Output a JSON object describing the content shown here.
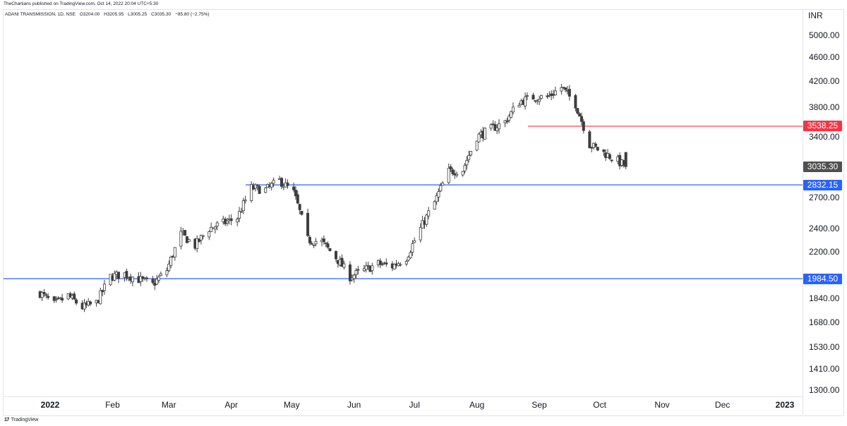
{
  "publisher_text": "TheChartians published on TradingView.com, Oct 14, 2022 20:04 UTC+5:30",
  "symbol": {
    "name": "ADANI TRANSMISSION, 1D, NSE",
    "open": "O3204.00",
    "high": "H3205.95",
    "low": "L3005.25",
    "close": "C3035.30",
    "change": "−85.80 (−2.75%)"
  },
  "currency": "INR",
  "footer": {
    "logo_glyph": "17",
    "brand": "TradingView"
  },
  "colors": {
    "up": "#ffffff",
    "down": "#3d3d3d",
    "wick": "#3d3d3d",
    "support": "#2962ff",
    "resistance": "#f23645",
    "last": "#505050"
  },
  "chart_data": {
    "type": "candlestick",
    "y_scale": "log",
    "ylim": [
      1270,
      5500
    ],
    "y_ticks": [
      "5000.00",
      "4600.00",
      "4200.00",
      "3800.00",
      "3400.00",
      "2700.00",
      "2400.00",
      "2200.00",
      "1840.00",
      "1680.00",
      "1530.00",
      "1410.00",
      "1300.00"
    ],
    "x_ticks": [
      {
        "label": "2022",
        "bold": true
      },
      {
        "label": "Feb",
        "bold": false
      },
      {
        "label": "Mar",
        "bold": false
      },
      {
        "label": "Apr",
        "bold": false
      },
      {
        "label": "May",
        "bold": false
      },
      {
        "label": "Jun",
        "bold": false
      },
      {
        "label": "Jul",
        "bold": false
      },
      {
        "label": "Aug",
        "bold": false
      },
      {
        "label": "Sep",
        "bold": false
      },
      {
        "label": "Oct",
        "bold": false
      },
      {
        "label": "Nov",
        "bold": false
      },
      {
        "label": "Dec",
        "bold": false
      },
      {
        "label": "2023",
        "bold": true
      }
    ],
    "horizontal_lines": [
      {
        "value": 3538.25,
        "label": "3538.25",
        "kind": "resistance"
      },
      {
        "value": 2832.15,
        "label": "2832.15",
        "kind": "support"
      },
      {
        "value": 1984.5,
        "label": "1984.50",
        "kind": "support"
      }
    ],
    "last_price": {
      "value": 3035.3,
      "label": "3035.30"
    },
    "anchors": [
      [
        "2021-12-27",
        1880
      ],
      [
        "2022-01-03",
        1800
      ],
      [
        "2022-01-10",
        1860
      ],
      [
        "2022-01-17",
        1780
      ],
      [
        "2022-01-24",
        1810
      ],
      [
        "2022-01-31",
        2000
      ],
      [
        "2022-02-07",
        2020
      ],
      [
        "2022-02-14",
        1980
      ],
      [
        "2022-02-21",
        1940
      ],
      [
        "2022-02-28",
        2050
      ],
      [
        "2022-03-07",
        2350
      ],
      [
        "2022-03-14",
        2250
      ],
      [
        "2022-03-21",
        2400
      ],
      [
        "2022-03-28",
        2450
      ],
      [
        "2022-04-04",
        2500
      ],
      [
        "2022-04-11",
        2800
      ],
      [
        "2022-04-18",
        2780
      ],
      [
        "2022-04-25",
        2880
      ],
      [
        "2022-05-02",
        2750
      ],
      [
        "2022-05-09",
        2300
      ],
      [
        "2022-05-16",
        2280
      ],
      [
        "2022-05-23",
        2150
      ],
      [
        "2022-05-30",
        2000
      ],
      [
        "2022-06-06",
        2050
      ],
      [
        "2022-06-13",
        2100
      ],
      [
        "2022-06-20",
        2080
      ],
      [
        "2022-06-27",
        2150
      ],
      [
        "2022-07-04",
        2400
      ],
      [
        "2022-07-11",
        2650
      ],
      [
        "2022-07-18",
        2980
      ],
      [
        "2022-07-25",
        3000
      ],
      [
        "2022-08-01",
        3400
      ],
      [
        "2022-08-08",
        3500
      ],
      [
        "2022-08-15",
        3600
      ],
      [
        "2022-08-22",
        3880
      ],
      [
        "2022-08-29",
        3950
      ],
      [
        "2022-09-05",
        3950
      ],
      [
        "2022-09-12",
        4100
      ],
      [
        "2022-09-19",
        3850
      ],
      [
        "2022-09-26",
        3300
      ],
      [
        "2022-10-03",
        3200
      ],
      [
        "2022-10-10",
        3100
      ],
      [
        "2022-10-14",
        3035.3
      ]
    ]
  }
}
